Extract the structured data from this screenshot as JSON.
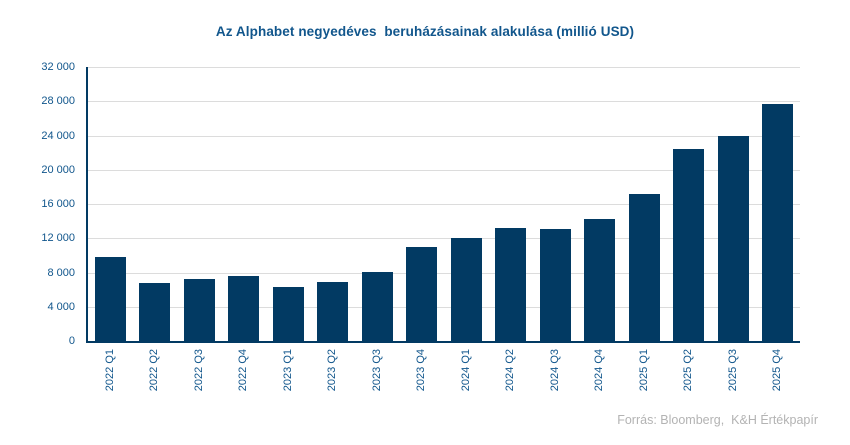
{
  "title": "Az Alphabet negyedéves  beruházásainak alakulása (millió USD)",
  "source": "Forrás: Bloomberg,  K&H Értékpapír",
  "colors": {
    "bar": "#023a63",
    "axis": "#023a63",
    "grid": "#dcdcdc",
    "title_text": "#11568c",
    "tick_text": "#11568c",
    "source_text": "#b3b3b3",
    "background": "#ffffff"
  },
  "chart_data": {
    "type": "bar",
    "title": "Az Alphabet negyedéves  beruházásainak alakulása (millió USD)",
    "xlabel": "",
    "ylabel": "",
    "categories": [
      "2022 Q1",
      "2022 Q2",
      "2022 Q3",
      "2022 Q4",
      "2023 Q1",
      "2023 Q2",
      "2023 Q3",
      "2023 Q4",
      "2024 Q1",
      "2024 Q2",
      "2024 Q3",
      "2024 Q4",
      "2025 Q1",
      "2025 Q2",
      "2025 Q3",
      "2025 Q4"
    ],
    "values": [
      9800,
      6800,
      7300,
      7600,
      6300,
      6900,
      8100,
      11000,
      12000,
      13200,
      13100,
      14300,
      17200,
      22400,
      23900,
      27700
    ],
    "ylim": [
      0,
      32000
    ],
    "ytick_step": 4000,
    "ytick_labels": [
      "0",
      "4 000",
      "8 000",
      "12 000",
      "16 000",
      "20 000",
      "24 000",
      "28 000",
      "32 000"
    ],
    "grid": "horizontal",
    "legend": "none",
    "bar_width_ratio": 0.7
  }
}
